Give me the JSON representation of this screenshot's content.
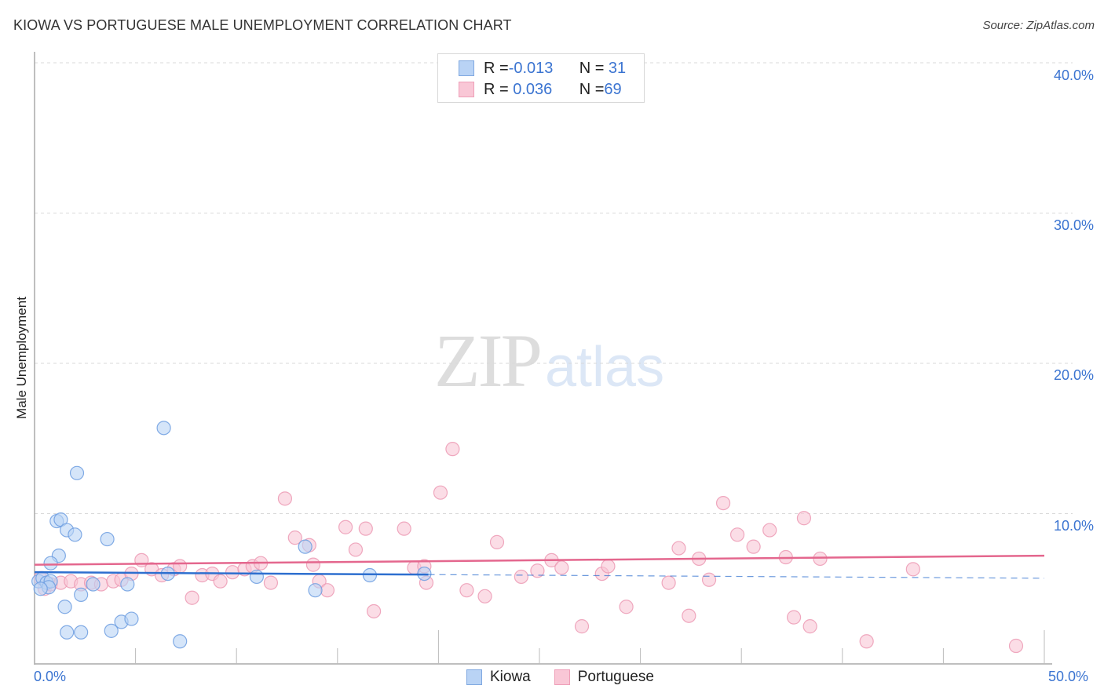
{
  "header": {
    "title": "KIOWA VS PORTUGUESE MALE UNEMPLOYMENT CORRELATION CHART",
    "source": "Source: ZipAtlas.com"
  },
  "axes": {
    "ylabel": "Male Unemployment",
    "yticks": [
      "40.0%",
      "30.0%",
      "20.0%",
      "10.0%"
    ],
    "xtick_left": "0.0%",
    "xtick_right": "50.0%"
  },
  "legend": {
    "kiowa": {
      "r_label": "R = ",
      "r_value": "-0.013",
      "n_label": "N = ",
      "n_value": " 31"
    },
    "portuguese": {
      "r_label": "R = ",
      "r_value": " 0.036",
      "n_label": "N = ",
      "n_value": "69"
    }
  },
  "bottom_legend": {
    "kiowa": "Kiowa",
    "portuguese": "Portuguese"
  },
  "watermark": {
    "zip": "ZIP",
    "atlas": "atlas"
  },
  "colors": {
    "kiowa_fill": "#b9d3f5",
    "kiowa_stroke": "#6d9ee0",
    "kiowa_line": "#2e6fcf",
    "portuguese_fill": "#f9c7d6",
    "portuguese_stroke": "#ec9ab4",
    "portuguese_line": "#e4678e",
    "tick_label": "#3b74d1"
  },
  "chart_data": {
    "type": "scatter",
    "title": "KIOWA VS PORTUGUESE MALE UNEMPLOYMENT CORRELATION CHART",
    "xlabel": "",
    "ylabel": "Male Unemployment",
    "xlim": [
      0,
      50
    ],
    "ylim": [
      0,
      42
    ],
    "x_unit": "%",
    "y_unit": "%",
    "yticks": [
      10,
      20,
      30,
      40
    ],
    "xticks_labeled": [
      0,
      50
    ],
    "grid": "horizontal dashed",
    "legend_position": "top-center (stats) and bottom-center (series)",
    "series": [
      {
        "name": "Kiowa",
        "R": -0.013,
        "N": 31,
        "trend": {
          "x0": 0,
          "y0": 6.1,
          "x1": 50,
          "y1": 5.7,
          "solid_until_x": 19.5
        },
        "points": [
          [
            6.4,
            15.7
          ],
          [
            2.1,
            12.7
          ],
          [
            1.1,
            9.5
          ],
          [
            1.3,
            9.6
          ],
          [
            1.6,
            8.9
          ],
          [
            2.0,
            8.6
          ],
          [
            3.6,
            8.3
          ],
          [
            1.2,
            7.2
          ],
          [
            0.8,
            6.7
          ],
          [
            13.4,
            7.8
          ],
          [
            0.2,
            5.5
          ],
          [
            0.4,
            5.7
          ],
          [
            0.6,
            5.4
          ],
          [
            0.8,
            5.5
          ],
          [
            0.7,
            5.1
          ],
          [
            0.3,
            5.0
          ],
          [
            2.9,
            5.3
          ],
          [
            4.6,
            5.3
          ],
          [
            2.3,
            4.6
          ],
          [
            6.6,
            6.0
          ],
          [
            11.0,
            5.8
          ],
          [
            16.6,
            5.9
          ],
          [
            19.3,
            6.0
          ],
          [
            13.9,
            4.9
          ],
          [
            1.5,
            3.8
          ],
          [
            1.6,
            2.1
          ],
          [
            2.3,
            2.1
          ],
          [
            3.8,
            2.2
          ],
          [
            4.3,
            2.8
          ],
          [
            4.8,
            3.0
          ],
          [
            7.2,
            1.5
          ]
        ]
      },
      {
        "name": "Portuguese",
        "R": 0.036,
        "N": 69,
        "trend": {
          "x0": 0,
          "y0": 6.6,
          "x1": 50,
          "y1": 7.2
        },
        "points": [
          [
            0.3,
            5.7
          ],
          [
            0.5,
            5.0
          ],
          [
            0.8,
            5.3
          ],
          [
            1.3,
            5.4
          ],
          [
            1.8,
            5.5
          ],
          [
            2.3,
            5.3
          ],
          [
            2.8,
            5.4
          ],
          [
            3.3,
            5.3
          ],
          [
            3.9,
            5.5
          ],
          [
            4.3,
            5.6
          ],
          [
            4.8,
            6.0
          ],
          [
            5.3,
            6.9
          ],
          [
            5.8,
            6.3
          ],
          [
            6.3,
            5.9
          ],
          [
            6.9,
            6.3
          ],
          [
            7.2,
            6.5
          ],
          [
            7.8,
            4.4
          ],
          [
            8.3,
            5.9
          ],
          [
            8.8,
            6.0
          ],
          [
            9.2,
            5.5
          ],
          [
            9.8,
            6.1
          ],
          [
            10.4,
            6.3
          ],
          [
            10.8,
            6.5
          ],
          [
            11.2,
            6.7
          ],
          [
            11.7,
            5.4
          ],
          [
            12.4,
            11.0
          ],
          [
            12.9,
            8.4
          ],
          [
            13.6,
            7.9
          ],
          [
            13.8,
            6.6
          ],
          [
            14.1,
            5.5
          ],
          [
            14.5,
            4.9
          ],
          [
            15.4,
            9.1
          ],
          [
            15.9,
            7.6
          ],
          [
            16.4,
            9.0
          ],
          [
            16.8,
            3.5
          ],
          [
            18.3,
            9.0
          ],
          [
            18.8,
            6.4
          ],
          [
            19.3,
            6.5
          ],
          [
            19.4,
            5.4
          ],
          [
            20.1,
            11.4
          ],
          [
            20.7,
            14.3
          ],
          [
            21.4,
            4.9
          ],
          [
            22.3,
            4.5
          ],
          [
            22.9,
            8.1
          ],
          [
            24.1,
            5.8
          ],
          [
            24.9,
            6.2
          ],
          [
            25.6,
            6.9
          ],
          [
            26.1,
            6.4
          ],
          [
            27.1,
            2.5
          ],
          [
            28.1,
            6.0
          ],
          [
            28.4,
            6.5
          ],
          [
            29.3,
            3.8
          ],
          [
            31.4,
            5.4
          ],
          [
            31.9,
            7.7
          ],
          [
            32.4,
            3.2
          ],
          [
            32.9,
            7.0
          ],
          [
            33.4,
            5.6
          ],
          [
            34.1,
            10.7
          ],
          [
            34.8,
            8.6
          ],
          [
            35.6,
            7.8
          ],
          [
            36.4,
            8.9
          ],
          [
            37.2,
            7.1
          ],
          [
            37.6,
            3.1
          ],
          [
            38.1,
            9.7
          ],
          [
            38.4,
            2.5
          ],
          [
            38.9,
            7.0
          ],
          [
            41.2,
            1.5
          ],
          [
            43.5,
            6.3
          ],
          [
            48.6,
            1.2
          ]
        ]
      }
    ]
  }
}
